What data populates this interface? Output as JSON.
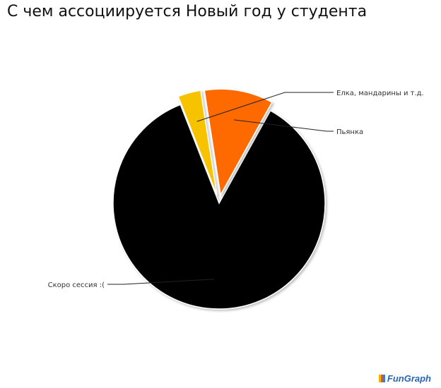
{
  "chart_data": {
    "type": "pie",
    "title": "С чем ассоциируется Новый год у студента",
    "slices": [
      {
        "label": "Скоро сессия :(",
        "value": 86,
        "color": "#000000",
        "label_side": "left"
      },
      {
        "label": "Елка, мандарины и т.д.",
        "value": 3.5,
        "color": "#f7c300",
        "label_side": "right"
      },
      {
        "label": "Пьянка",
        "value": 10.5,
        "color": "#ff6a00",
        "label_side": "right"
      }
    ],
    "legend": "none (leader-line labels)"
  },
  "branding": {
    "logo_text": "FunGraph",
    "logo_icon": "bar-chart-icon"
  }
}
